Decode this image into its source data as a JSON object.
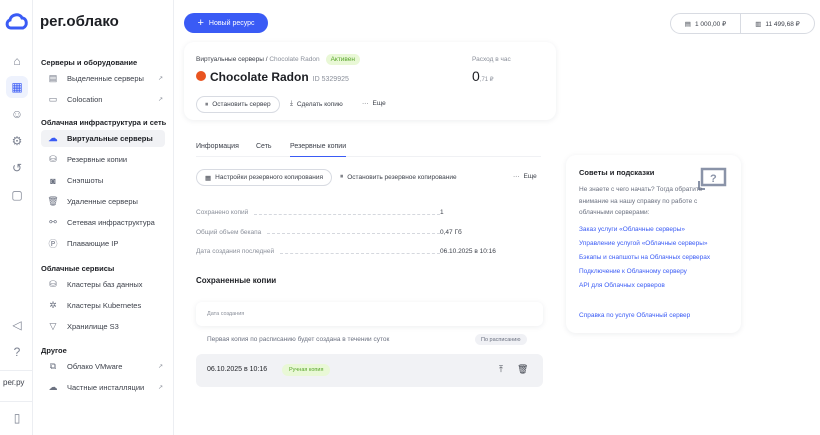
{
  "brand": {
    "name": "рег.облако",
    "footer": "рег.ру",
    "color": "#3a5bf5"
  },
  "rail": [
    "home-icon",
    "grid-icon",
    "users-icon",
    "gear-icon",
    "history-icon",
    "document-user-icon",
    "megaphone-icon",
    "support-icon",
    "panel-toggle-icon"
  ],
  "nav": {
    "sections": [
      {
        "title": "Серверы и оборудование",
        "items": [
          {
            "label": "Выделенные серверы",
            "external": true
          },
          {
            "label": "Colocation",
            "external": true
          }
        ]
      },
      {
        "title": "Облачная инфраструктура и сеть",
        "items": [
          {
            "label": "Виртуальные серверы",
            "active": true
          },
          {
            "label": "Резервные копии"
          },
          {
            "label": "Снэпшоты"
          },
          {
            "label": "Удаленные серверы"
          },
          {
            "label": "Сетевая инфраструктура"
          },
          {
            "label": "Плавающие IP"
          }
        ]
      },
      {
        "title": "Облачные сервисы",
        "items": [
          {
            "label": "Кластеры баз данных"
          },
          {
            "label": "Кластеры Kubernetes"
          },
          {
            "label": "Хранилище S3"
          }
        ]
      },
      {
        "title": "Другое",
        "items": [
          {
            "label": "Облако VMware",
            "external": true
          },
          {
            "label": "Частные инсталляции",
            "external": true
          }
        ]
      }
    ]
  },
  "header": {
    "new_resource": "Новый ресурс",
    "balance1": "1 000,00 ₽",
    "balance2": "11 499,68 ₽"
  },
  "server": {
    "breadcrumb_parent": "Виртуальные серверы",
    "breadcrumb_sep": " / ",
    "breadcrumb_current": "Chocolate Radon",
    "status": "Активен",
    "name": "Chocolate Radon",
    "id": "ID 5329925",
    "cost_label": "Расход в час",
    "cost_int": "0",
    "cost_frac": ",71 ₽",
    "actions": {
      "stop": "Остановить сервер",
      "copy": "Сделать копию",
      "more": "Еще"
    }
  },
  "tabs": [
    {
      "label": "Информация"
    },
    {
      "label": "Сеть"
    },
    {
      "label": "Резервные копии",
      "active": true
    }
  ],
  "backup": {
    "settings": "Настройки резервного копирования",
    "stop": "Остановить резервное копирование",
    "more": "Еще",
    "stats": [
      {
        "label": "Сохранено копий",
        "value": "1"
      },
      {
        "label": "Общий объем бекапа",
        "value": "0,47 Гб"
      },
      {
        "label": "Дата создания последней",
        "value": "06.10.2025 в 10:16"
      }
    ],
    "saved_title": "Сохраненные копии",
    "col_date": "Дата создания",
    "scheduled_note": "Первая копия по расписанию будет создана в течении суток",
    "scheduled_badge": "По расписанию",
    "copies": [
      {
        "date": "06.10.2025 в 10:16",
        "type": "Ручная копия"
      }
    ]
  },
  "tips": {
    "title": "Советы и подсказки",
    "text": "Не знаете с чего начать? Тогда обратите внимание на нашу справку по работе с облачными серверами:",
    "links": [
      "Заказ услуги «Облачные серверы»",
      "Управление услугой «Облачные серверы»",
      "Бэкапы и снапшоты на Облачных серверах",
      "Подключение к Облачному серверу",
      "API для Облачных серверов"
    ],
    "help": "Справка по услуге Облачный сервер"
  }
}
